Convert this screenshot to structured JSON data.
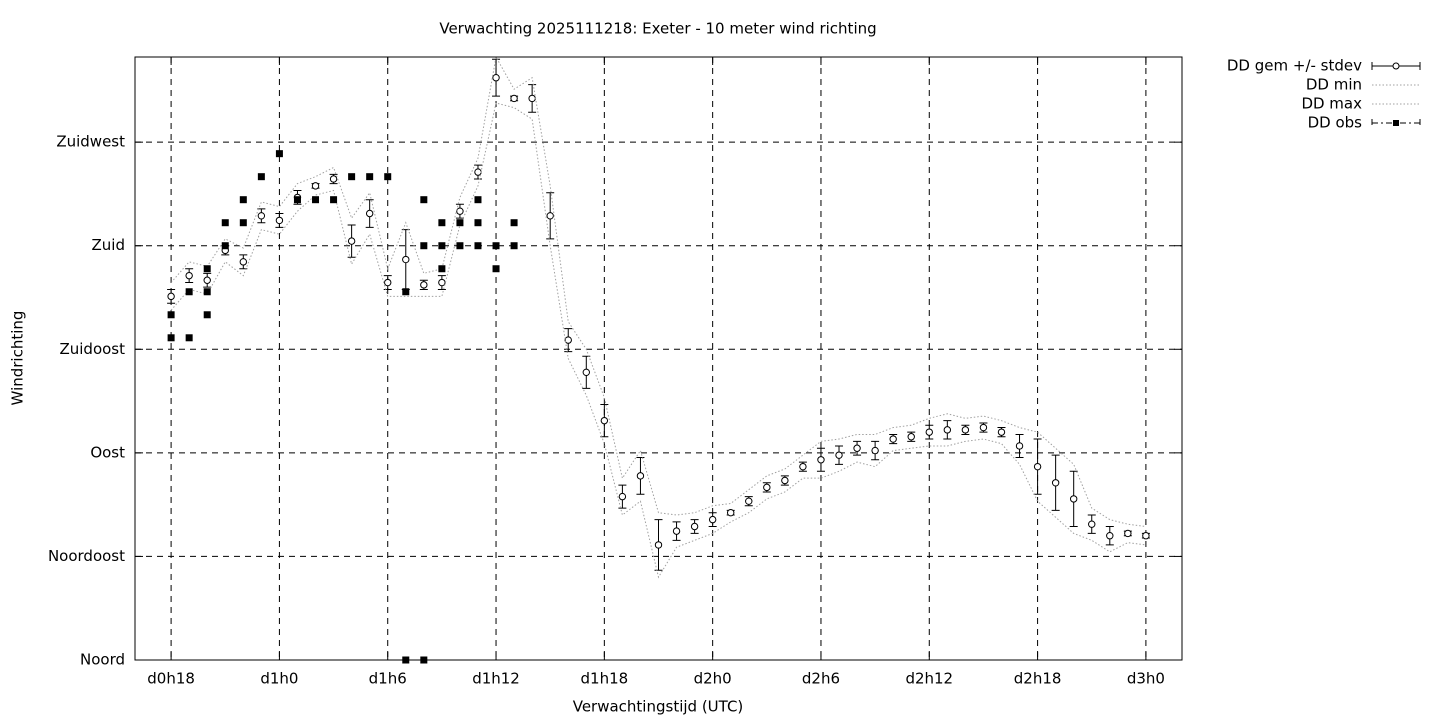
{
  "chart_data": {
    "type": "errorbar",
    "title": "Verwachting 2025111218: Exeter - 10 meter wind richting",
    "xlabel": "Verwachtingstijd (UTC)",
    "ylabel": "Windrichting",
    "xlim": [
      16,
      74
    ],
    "ylim": [
      0,
      262
    ],
    "xticks": [
      {
        "value": 18,
        "label": "d0h18"
      },
      {
        "value": 24,
        "label": "d1h0"
      },
      {
        "value": 30,
        "label": "d1h6"
      },
      {
        "value": 36,
        "label": "d1h12"
      },
      {
        "value": 42,
        "label": "d1h18"
      },
      {
        "value": 48,
        "label": "d2h0"
      },
      {
        "value": 54,
        "label": "d2h6"
      },
      {
        "value": 60,
        "label": "d2h12"
      },
      {
        "value": 66,
        "label": "d2h18"
      },
      {
        "value": 72,
        "label": "d3h0"
      }
    ],
    "yticks": [
      {
        "value": 0,
        "label": "Noord"
      },
      {
        "value": 45,
        "label": "Noordoost"
      },
      {
        "value": 90,
        "label": "Oost"
      },
      {
        "value": 135,
        "label": "Zuidoost"
      },
      {
        "value": 180,
        "label": "Zuid"
      },
      {
        "value": 225,
        "label": "Zuidwest"
      }
    ],
    "grid": true,
    "legend": "outside-top-right",
    "x": [
      18,
      19,
      20,
      21,
      22,
      23,
      24,
      25,
      26,
      27,
      28,
      29,
      30,
      31,
      32,
      33,
      34,
      35,
      36,
      37,
      38,
      39,
      40,
      41,
      42,
      43,
      44,
      45,
      46,
      47,
      48,
      49,
      50,
      51,
      52,
      53,
      54,
      55,
      56,
      57,
      58,
      59,
      60,
      61,
      62,
      63,
      64,
      65,
      66,
      67,
      68,
      69,
      70,
      71,
      72
    ],
    "series": [
      {
        "name": "DD gem +/- stdev",
        "style": "errorbars",
        "color": "#000000",
        "values": [
          158,
          167,
          165,
          178,
          173,
          193,
          191,
          201,
          206,
          209,
          182,
          194,
          164,
          174,
          163,
          164,
          195,
          212,
          253,
          244,
          244,
          193,
          139,
          125,
          104,
          71,
          80,
          50,
          56,
          58,
          61,
          64,
          69,
          75,
          78,
          84,
          87,
          89,
          92,
          91,
          96,
          97,
          99,
          100,
          100,
          101,
          99,
          93,
          84,
          77,
          70,
          59,
          54,
          55,
          54
        ],
        "errors": [
          3,
          3,
          3,
          2,
          3,
          3,
          3,
          3,
          1,
          2,
          7,
          6,
          3,
          13,
          2,
          3,
          3,
          3,
          8,
          1,
          6,
          10,
          5,
          7,
          7,
          5,
          8,
          11,
          4,
          3,
          3,
          1,
          2,
          2,
          2,
          2,
          5,
          4,
          3,
          4,
          2,
          2,
          3,
          4,
          2,
          2,
          2,
          5,
          12,
          12,
          12,
          4,
          4,
          1,
          1
        ]
      },
      {
        "name": "DD min",
        "style": "dotted",
        "color": "#a0a0a0",
        "values": [
          152,
          161,
          159,
          173,
          167,
          187,
          185,
          195,
          202,
          204,
          172,
          185,
          158,
          158,
          158,
          158,
          189,
          206,
          242,
          240,
          235,
          180,
          131,
          115,
          94,
          63,
          69,
          36,
          49,
          52,
          55,
          60,
          64,
          70,
          73,
          79,
          79,
          82,
          86,
          84,
          91,
          92,
          93,
          93,
          95,
          96,
          94,
          85,
          69,
          62,
          55,
          52,
          47,
          51,
          50
        ]
      },
      {
        "name": "DD max",
        "style": "dotted",
        "color": "#a0a0a0",
        "values": [
          164,
          173,
          171,
          183,
          179,
          199,
          197,
          207,
          210,
          214,
          192,
          203,
          170,
          190,
          168,
          170,
          201,
          218,
          262,
          248,
          253,
          206,
          147,
          135,
          114,
          79,
          91,
          64,
          63,
          64,
          67,
          68,
          74,
          80,
          83,
          89,
          95,
          96,
          98,
          98,
          101,
          102,
          105,
          107,
          105,
          106,
          104,
          101,
          99,
          92,
          85,
          66,
          61,
          59,
          58
        ]
      },
      {
        "name": "DD obs",
        "style": "points",
        "color": "#000000",
        "x": [
          18,
          18,
          19,
          19,
          20,
          20,
          20,
          21,
          21,
          22,
          22,
          23,
          24,
          25,
          26,
          27,
          28,
          29,
          30,
          31,
          31,
          32,
          32,
          32,
          33,
          33,
          33,
          34,
          34,
          35,
          35,
          35,
          36,
          36,
          37,
          37
        ],
        "values": [
          150,
          140,
          160,
          140,
          170,
          160,
          150,
          190,
          180,
          200,
          190,
          210,
          220,
          200,
          200,
          200,
          210,
          210,
          210,
          160,
          0,
          200,
          180,
          0,
          190,
          180,
          170,
          190,
          180,
          200,
          190,
          180,
          180,
          170,
          190,
          180
        ]
      }
    ]
  }
}
